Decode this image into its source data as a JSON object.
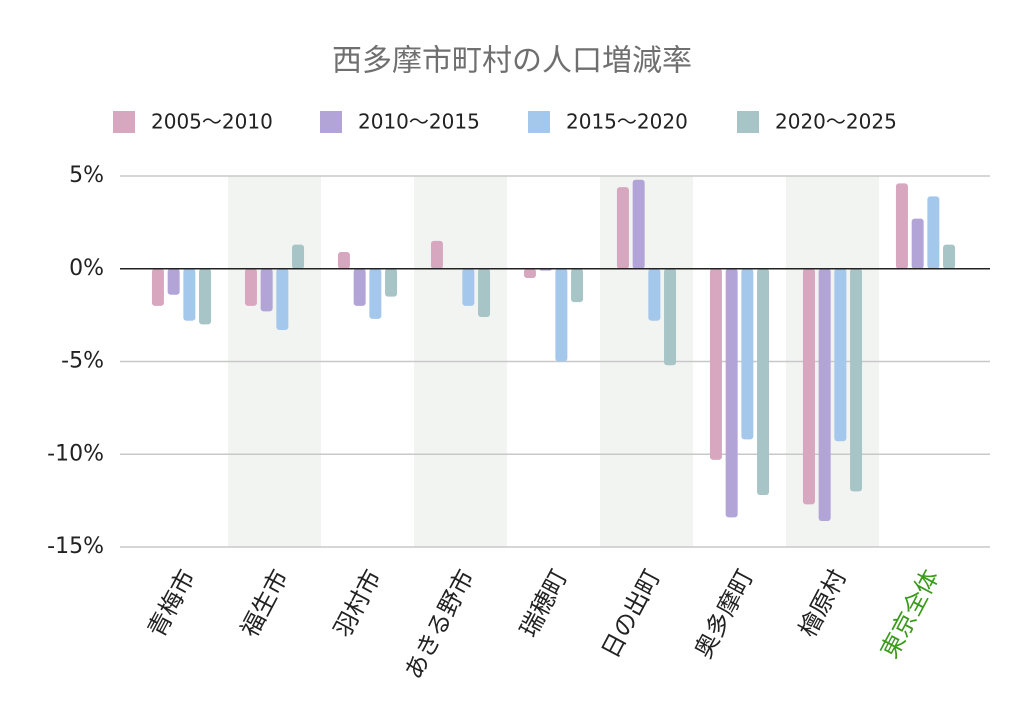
{
  "chart_data": {
    "type": "bar",
    "title": "西多摩市町村の人口増減率",
    "categories": [
      "青梅市",
      "福生市",
      "羽村市",
      "あきる野市",
      "瑞穂町",
      "日の出町",
      "奥多摩町",
      "檜原村",
      "東京全体"
    ],
    "series": [
      {
        "name": "2005～2010",
        "color": "#d6a7bf",
        "values": [
          -2.0,
          -2.0,
          0.9,
          1.5,
          -0.5,
          4.4,
          -10.3,
          -12.7,
          4.6
        ]
      },
      {
        "name": "2010～2015",
        "color": "#b3a4d8",
        "values": [
          -1.4,
          -2.3,
          -2.0,
          0,
          -0.1,
          4.8,
          -13.4,
          -13.6,
          2.7
        ]
      },
      {
        "name": "2015～2020",
        "color": "#a4c8ec",
        "values": [
          -2.8,
          -3.3,
          -2.7,
          -2.0,
          -5.0,
          -2.8,
          -9.2,
          -9.3,
          3.9
        ]
      },
      {
        "name": "2020～2025",
        "color": "#a7c4c6",
        "values": [
          -3.0,
          1.3,
          -1.5,
          -2.6,
          -1.8,
          -5.2,
          -12.2,
          -12.0,
          1.3
        ]
      }
    ],
    "ylim": [
      -15,
      5
    ],
    "yticks": [
      {
        "value": 5,
        "label": "5%"
      },
      {
        "value": 0,
        "label": "0%"
      },
      {
        "value": -5,
        "label": "-5%"
      },
      {
        "value": -10,
        "label": "-10%"
      },
      {
        "value": -15,
        "label": "-15%"
      }
    ],
    "grid": true
  }
}
